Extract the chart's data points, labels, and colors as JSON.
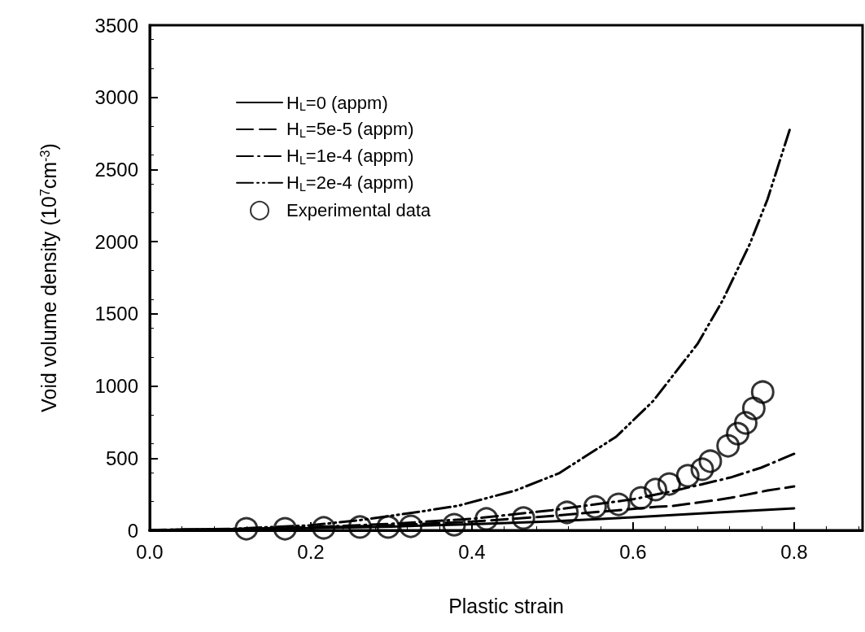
{
  "chart_data": {
    "type": "line",
    "xlabel": "Plastic strain",
    "ylabel": "Void volume density (10$^{7}$cm$^{-3}$)",
    "xlim": [
      0,
      0.885
    ],
    "xticks": [
      {
        "value": 0,
        "label": "0.0"
      },
      {
        "value": 0.2,
        "label": "0.2"
      },
      {
        "value": 0.4,
        "label": "0.4"
      },
      {
        "value": 0.6,
        "label": "0.6"
      },
      {
        "value": 0.8,
        "label": "0.8"
      }
    ],
    "ylim": [
      0,
      3500
    ],
    "yticks": [
      0,
      500,
      1000,
      1500,
      2000,
      2500,
      3000,
      3500
    ],
    "grid": false,
    "legend": "top left",
    "series": [
      {
        "name": "H$_{L}$=0 (appm)",
        "color": "#000000",
        "line_style": "solid",
        "marker": "none",
        "x": [
          0,
          0.1,
          0.2,
          0.3,
          0.4,
          0.5,
          0.6,
          0.706,
          0.8
        ],
        "values": [
          2,
          7,
          15,
          26,
          42,
          62,
          90,
          124,
          152
        ]
      },
      {
        "name": "H$_{L}$=5e-5 (appm)",
        "color": "#000000",
        "line_style": "dashed",
        "marker": "none",
        "x": [
          0,
          0.1,
          0.2,
          0.3,
          0.4,
          0.5,
          0.63,
          0.649,
          0.703,
          0.721,
          0.767,
          0.8
        ],
        "values": [
          2,
          8,
          18,
          35,
          60,
          100,
          163,
          169,
          209,
          225,
          276,
          304
        ]
      },
      {
        "name": "H$_{L}$=1e-4 (appm)",
        "color": "#000000",
        "line_style": "dashdot",
        "marker": "none",
        "x": [
          0,
          0.1,
          0.2,
          0.3,
          0.4,
          0.5,
          0.6,
          0.653,
          0.721,
          0.759,
          0.8
        ],
        "values": [
          2,
          8,
          22,
          45,
          80,
          140,
          215,
          276,
          366,
          434,
          530
        ]
      },
      {
        "name": "H$_{L}$=2e-4 (appm)",
        "color": "#000000",
        "line_style": "dashdotdot",
        "marker": "none",
        "x": [
          0,
          0.1,
          0.2,
          0.26,
          0.329,
          0.382,
          0.454,
          0.508,
          0.579,
          0.625,
          0.68,
          0.711,
          0.745,
          0.767,
          0.795
        ],
        "values": [
          2,
          10,
          35,
          70,
          124,
          169,
          276,
          395,
          648,
          896,
          1291,
          1590,
          1984,
          2294,
          2784
        ]
      },
      {
        "name": "Experimental data",
        "type": "scatter",
        "color": "#000000",
        "marker": "circle",
        "x": [
          0.12,
          0.168,
          0.216,
          0.261,
          0.296,
          0.324,
          0.378,
          0.418,
          0.464,
          0.518,
          0.553,
          0.582,
          0.61,
          0.628,
          0.645,
          0.668,
          0.686,
          0.696,
          0.718,
          0.73,
          0.74,
          0.75,
          0.761
        ],
        "values": [
          11,
          11,
          17,
          23,
          23,
          28,
          39,
          79,
          85,
          124,
          163,
          180,
          225,
          282,
          321,
          378,
          423,
          479,
          586,
          670,
          744,
          845,
          958
        ]
      }
    ]
  }
}
